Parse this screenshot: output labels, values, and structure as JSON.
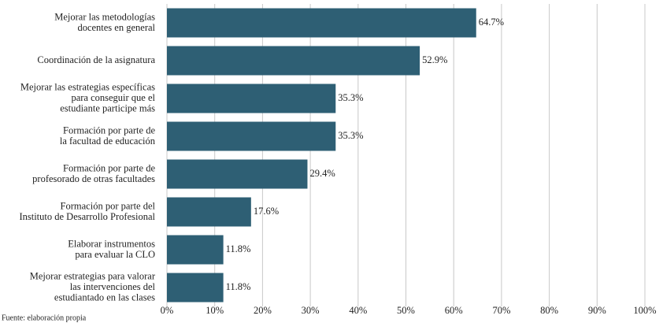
{
  "chart_data": {
    "type": "barh",
    "categories": [
      "Mejorar las metodologías\ndocentes en general",
      "Coordinación de la asignatura",
      "Mejorar las estrategias específicas\npara conseguir que el\nestudiante participe más",
      "Formación por parte de\nla facultad de educación",
      "Formación por parte de\nprofesorado de otras facultades",
      "Formación por parte del\nInstituto de Desarrollo Profesional",
      "Elaborar instrumentos\npara evaluar la CLO",
      "Mejorar estrategias para valorar\nlas intervenciones del\nestudiantado en las clases"
    ],
    "values": [
      64.7,
      52.9,
      35.3,
      35.3,
      29.4,
      17.6,
      11.8,
      11.8
    ],
    "value_labels": [
      "64.7%",
      "52.9%",
      "35.3%",
      "35.3%",
      "29.4%",
      "17.6%",
      "11.8%",
      "11.8%"
    ],
    "color": "#2e5f74",
    "xlim": [
      0,
      100
    ],
    "xticks": [
      {
        "value": 0,
        "label": "0%"
      },
      {
        "value": 10,
        "label": "10%"
      },
      {
        "value": 20,
        "label": "20%"
      },
      {
        "value": 30,
        "label": "30%"
      },
      {
        "value": 40,
        "label": "40%"
      },
      {
        "value": 50,
        "label": "50%"
      },
      {
        "value": 60,
        "label": "60%"
      },
      {
        "value": 70,
        "label": "70%"
      },
      {
        "value": 80,
        "label": "80%"
      },
      {
        "value": 90,
        "label": "90%"
      },
      {
        "value": 100,
        "label": "100%"
      }
    ],
    "grid": true,
    "source": "Fuente: elaboración propia"
  }
}
